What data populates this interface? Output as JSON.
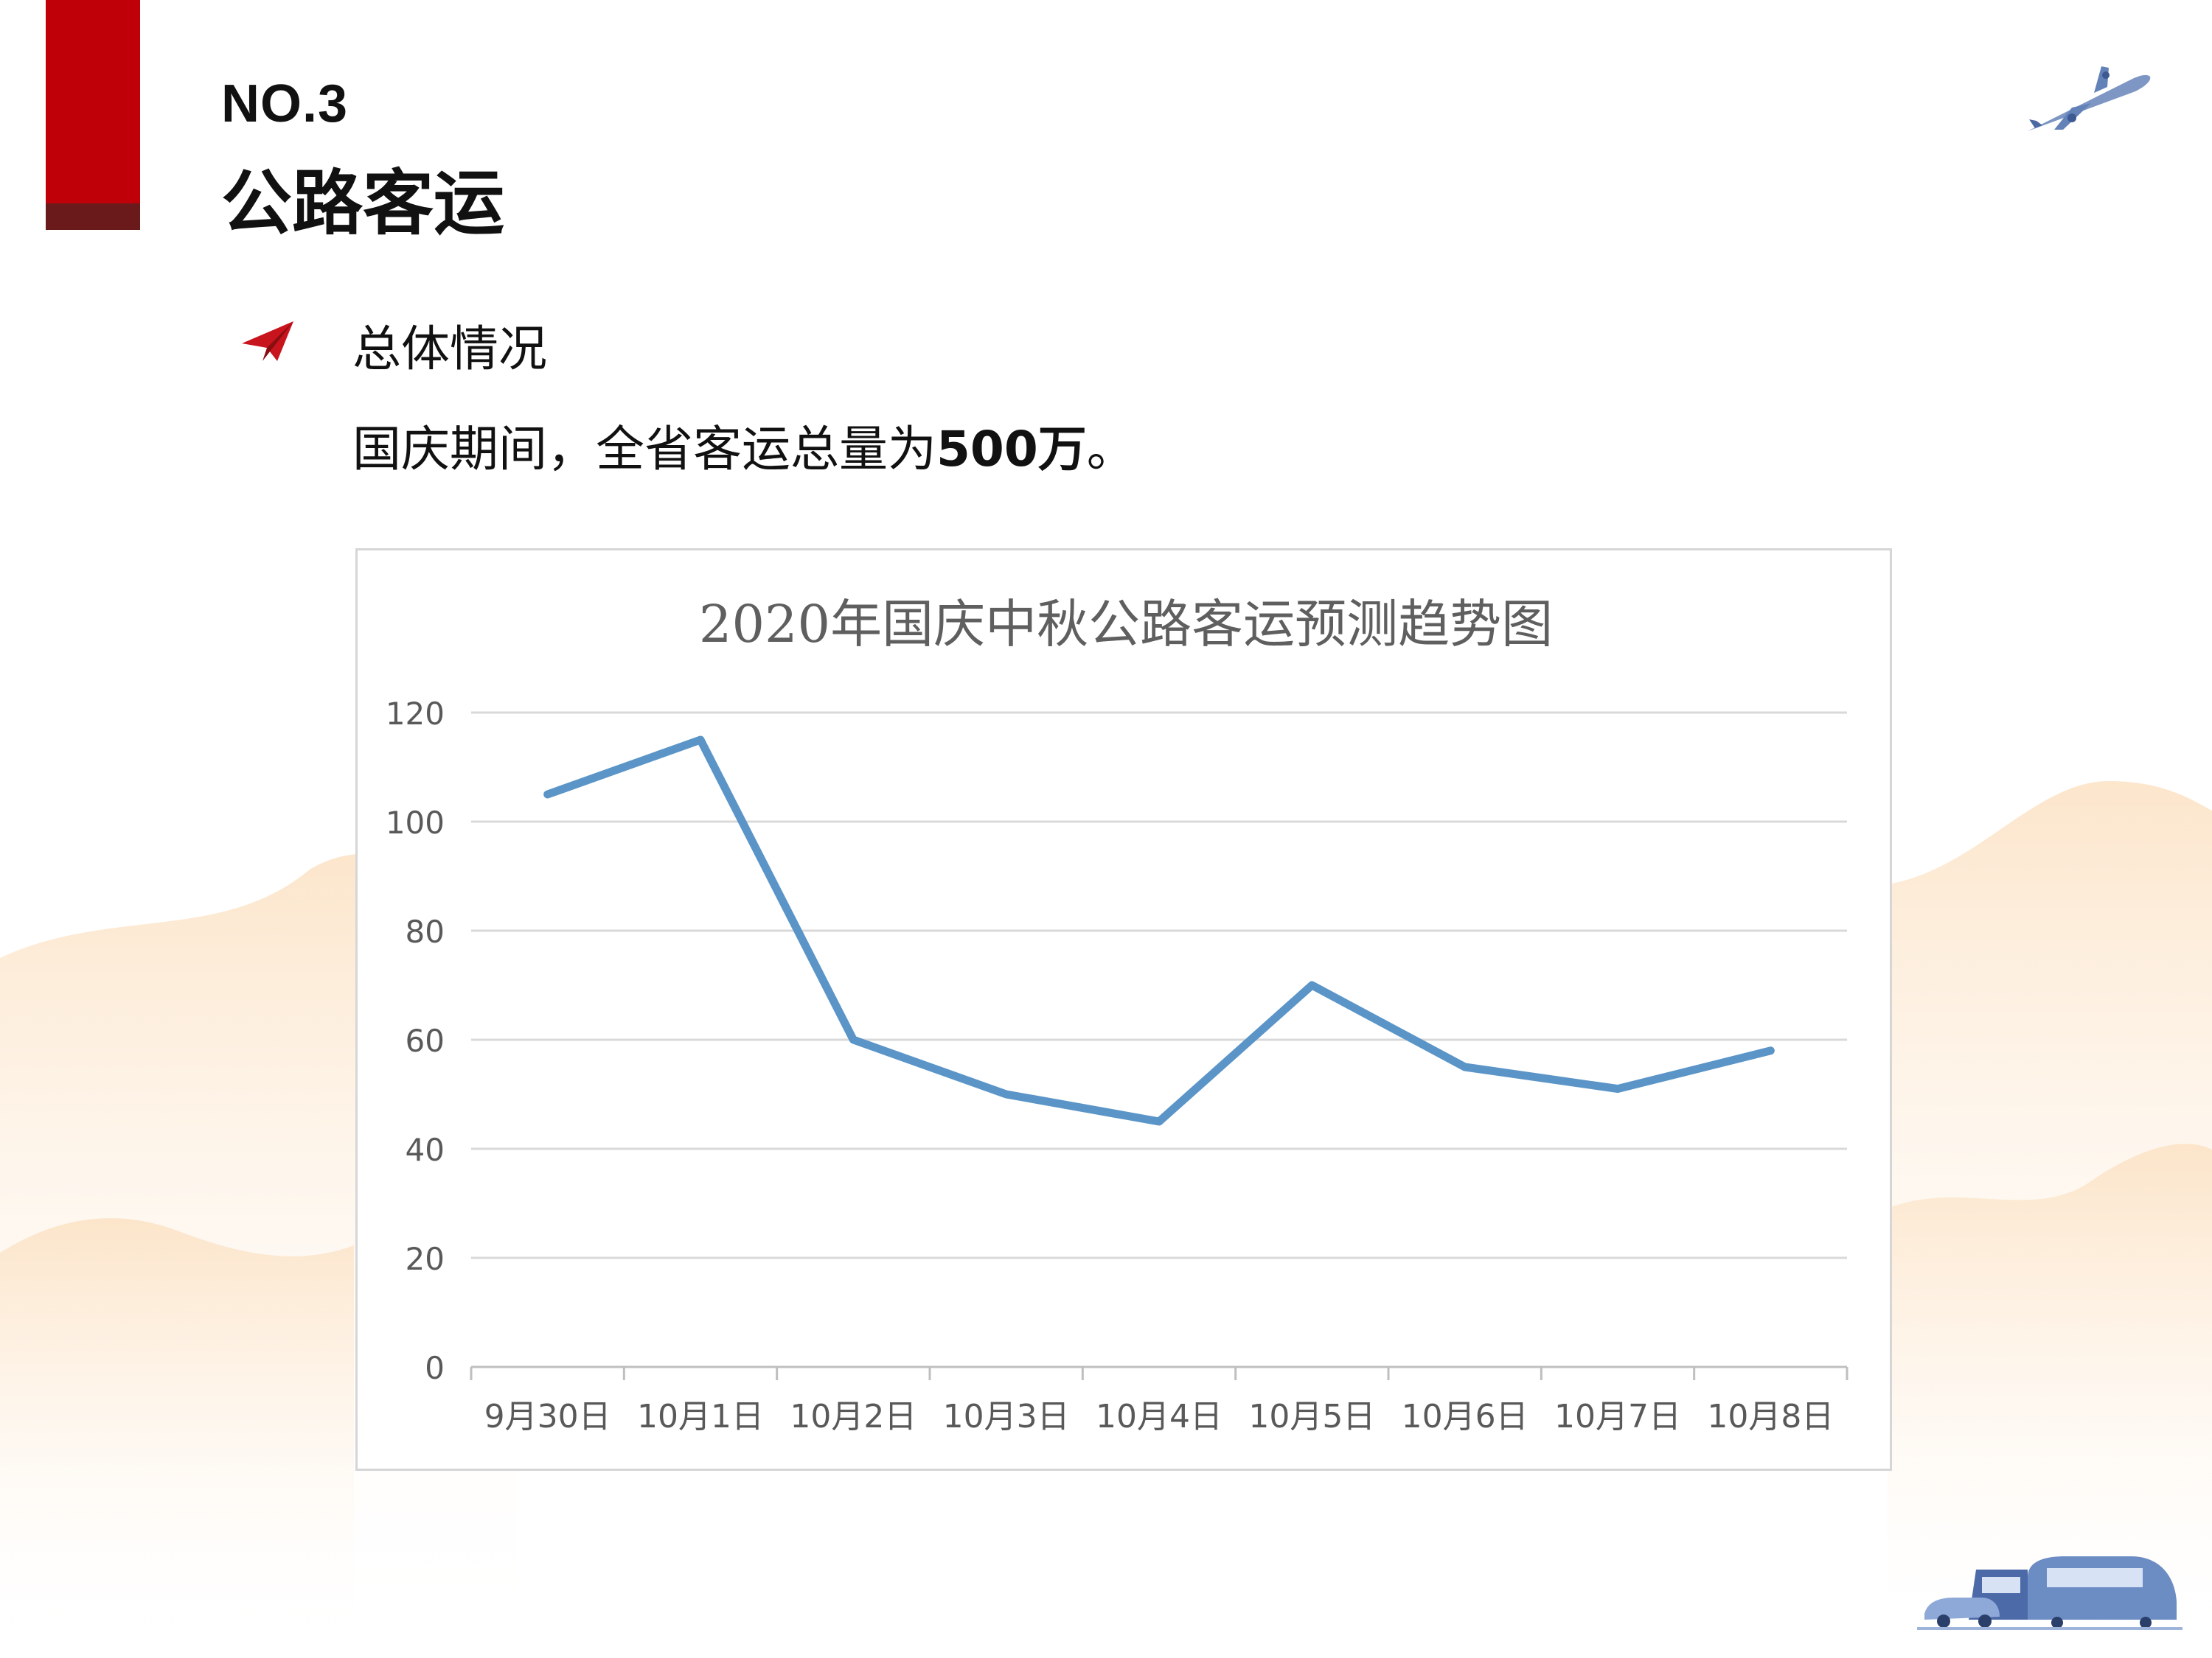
{
  "header": {
    "number": "NO.3",
    "title": "公路客运"
  },
  "section": {
    "heading": "总体情况",
    "summary_prefix": "国庆期间，全省客运总量为",
    "summary_value": "500万",
    "summary_suffix": "。"
  },
  "icons": {
    "plane": "airplane-icon",
    "bullet": "paper-plane-icon",
    "transport": "vehicles-icon"
  },
  "colors": {
    "accent": "#c00008",
    "accent_dark": "#6b1a1c",
    "line": "#5b95c8",
    "wave": "#fbe2c4"
  },
  "chart_data": {
    "type": "line",
    "title": "2020年国庆中秋公路客运预测趋势图",
    "categories": [
      "9月30日",
      "10月1日",
      "10月2日",
      "10月3日",
      "10月4日",
      "10月5日",
      "10月6日",
      "10月7日",
      "10月8日"
    ],
    "series": [
      {
        "values": [
          105,
          115,
          60,
          50,
          45,
          70,
          55,
          51,
          58
        ]
      }
    ],
    "yticks": [
      "0",
      "20",
      "40",
      "60",
      "80",
      "100",
      "120"
    ],
    "ylim": [
      0,
      120
    ],
    "grid": true,
    "legend": "none"
  }
}
